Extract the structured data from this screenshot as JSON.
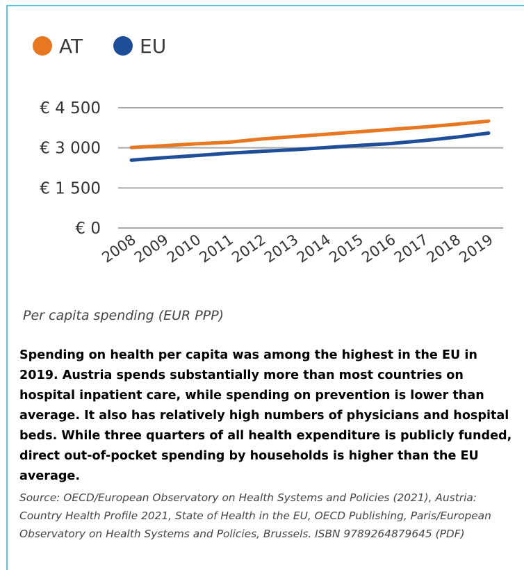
{
  "chart_data": {
    "type": "line",
    "categories": [
      "2008",
      "2009",
      "2010",
      "2011",
      "2012",
      "2013",
      "2014",
      "2015",
      "2016",
      "2017",
      "2018",
      "2019"
    ],
    "series": [
      {
        "name": "AT",
        "color": "#e87722",
        "values": [
          3010,
          3080,
          3150,
          3210,
          3330,
          3420,
          3510,
          3600,
          3690,
          3780,
          3880,
          4000
        ]
      },
      {
        "name": "EU",
        "color": "#1f4e99",
        "values": [
          2540,
          2630,
          2710,
          2800,
          2870,
          2930,
          3010,
          3090,
          3160,
          3270,
          3400,
          3550
        ]
      }
    ],
    "yticks": [
      {
        "value": 0,
        "label": "€ 0"
      },
      {
        "value": 1500,
        "label": "€ 1 500"
      },
      {
        "value": 3000,
        "label": "€ 3 000"
      },
      {
        "value": 4500,
        "label": "€ 4 500"
      }
    ],
    "ylim": [
      0,
      4500
    ],
    "grid": true,
    "legend_position": "top-left",
    "xlabel": "",
    "ylabel": ""
  },
  "caption": "Per capita spending (EUR PPP)",
  "summary": "Spending on health per capita was among the highest in the EU in 2019. Austria spends substantially more than most countries on hospital inpatient care, while spending on prevention is lower than average. It also has relatively high numbers of physicians and hospital beds. While three quarters of all health expenditure is publicly funded, direct out-of-pocket spending by households is higher than the EU average.",
  "source": "Source: OECD/European Observatory on Health Systems and Policies (2021), Austria: Country Health Profile 2021, State of Health in the EU, OECD Publishing, Paris/European Observatory on Health Systems and Policies, Brussels. ISBN 9789264879645 (PDF)",
  "colors": {
    "border": "#5bc0e8",
    "grid": "#a6a6a6"
  }
}
